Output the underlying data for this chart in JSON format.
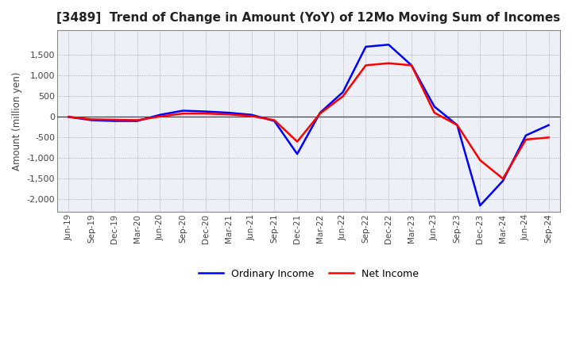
{
  "title": "[3489]  Trend of Change in Amount (YoY) of 12Mo Moving Sum of Incomes",
  "ylabel": "Amount (million yen)",
  "ylim": [
    -2300,
    2100
  ],
  "yticks": [
    -2000,
    -1500,
    -1000,
    -500,
    0,
    500,
    1000,
    1500
  ],
  "legend_labels": [
    "Ordinary Income",
    "Net Income"
  ],
  "line_colors": [
    "#0000ff",
    "#ff0000"
  ],
  "background_color": "#ffffff",
  "plot_bg_color": "#eef0f8",
  "grid_color": "#888888",
  "dates": [
    "Jun-19",
    "Sep-19",
    "Dec-19",
    "Mar-20",
    "Jun-20",
    "Sep-20",
    "Dec-20",
    "Mar-21",
    "Jun-21",
    "Sep-21",
    "Dec-21",
    "Mar-22",
    "Jun-22",
    "Sep-22",
    "Dec-22",
    "Mar-23",
    "Jun-23",
    "Sep-23",
    "Dec-23",
    "Mar-24",
    "Jun-24",
    "Sep-24"
  ],
  "ordinary_income": [
    0,
    -80,
    -100,
    -100,
    50,
    150,
    130,
    100,
    50,
    -100,
    -900,
    100,
    600,
    1700,
    1750,
    1250,
    250,
    -200,
    -2150,
    -1550,
    -450,
    -200
  ],
  "net_income": [
    0,
    -60,
    -70,
    -80,
    10,
    80,
    80,
    60,
    20,
    -80,
    -600,
    80,
    500,
    1250,
    1300,
    1250,
    100,
    -200,
    -1050,
    -1500,
    -550,
    -500
  ]
}
